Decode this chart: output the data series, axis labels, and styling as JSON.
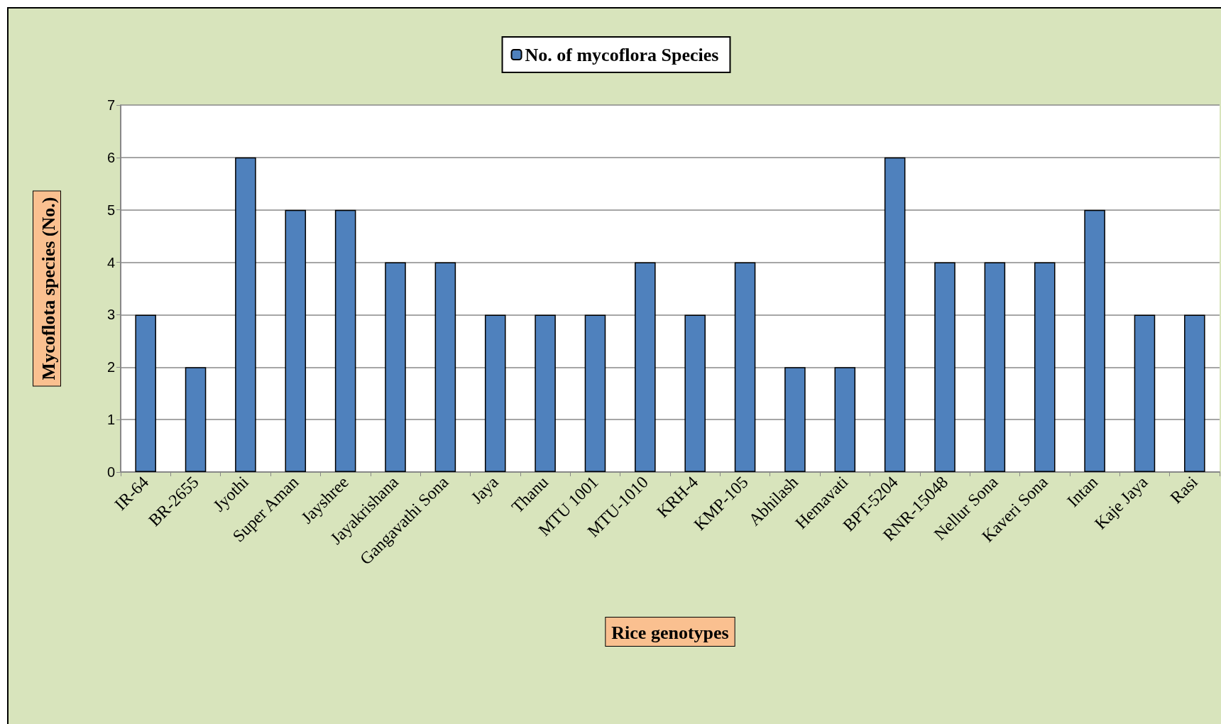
{
  "chart_data": {
    "type": "bar",
    "xlabel": "Rice genotypes",
    "ylabel": "Mycoflota species (No.)",
    "categories": [
      "IR-64",
      "BR-2655",
      "Jyothi",
      "Super Aman",
      "Jayshree",
      "Jayakrishana",
      "Gangavathi Sona",
      "Jaya",
      "Thanu",
      "MTU 1001",
      "MTU-1010",
      "KRH-4",
      "KMP-105",
      "Abhilash",
      "Hemavati",
      "BPT-5204",
      "RNR-15048",
      "Nellur Sona",
      "Kaveri Sona",
      "Intan",
      "Kaje Jaya",
      "Rasi"
    ],
    "series": [
      {
        "name": "No. of mycoflora Species",
        "color": "#4f81bd",
        "values": [
          3,
          2,
          6,
          5,
          5,
          4,
          4,
          3,
          3,
          3,
          4,
          3,
          4,
          2,
          2,
          6,
          4,
          4,
          4,
          5,
          3,
          3
        ]
      }
    ],
    "ylim": [
      0,
      7
    ],
    "yticks": [
      0,
      1,
      2,
      3,
      4,
      5,
      6,
      7
    ],
    "grid": "y",
    "legend": "top"
  }
}
